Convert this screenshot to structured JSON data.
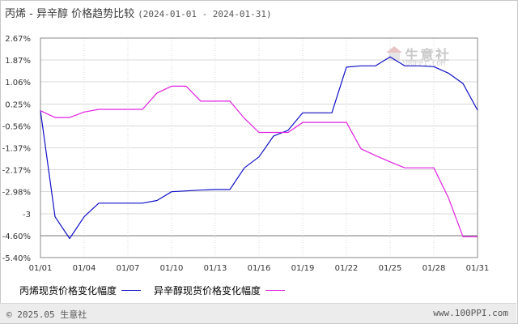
{
  "header": {
    "title": "丙烯 - 异辛醇 价格趋势比较",
    "date_range": "(2024-01-01 - 2024-01-31)"
  },
  "watermark": {
    "text": "生意社",
    "url": "100PPI.COM"
  },
  "footer": {
    "copyright": "© 2025.05 生意社",
    "site": "www.100PPI.com"
  },
  "colors": {
    "series1": "#1010c8",
    "series2": "#e020e0",
    "grid": "#d8d8d8",
    "axis": "#888888"
  },
  "chart_data": {
    "type": "line",
    "title": "丙烯 - 异辛醇 价格趋势比较",
    "xlabel": "",
    "ylabel": "",
    "y_tick_labels": [
      "2.67%",
      "1.87%",
      "1.06%",
      "0.25%",
      "-0.56%",
      "-1.37%",
      "-2.17%",
      "-2.98%",
      "-3",
      "-4.60%",
      "-5.40%"
    ],
    "ylim": [
      -5.4,
      2.67
    ],
    "x_tick_labels": [
      "01/01",
      "01/04",
      "01/07",
      "01/10",
      "01/13",
      "01/16",
      "01/19",
      "01/22",
      "01/25",
      "01/28",
      "01/31"
    ],
    "grid": true,
    "legend_position": "bottom-left",
    "x": [
      "01/01",
      "01/02",
      "01/03",
      "01/04",
      "01/05",
      "01/06",
      "01/07",
      "01/08",
      "01/09",
      "01/10",
      "01/11",
      "01/12",
      "01/13",
      "01/14",
      "01/15",
      "01/16",
      "01/17",
      "01/18",
      "01/19",
      "01/20",
      "01/21",
      "01/22",
      "01/23",
      "01/24",
      "01/25",
      "01/26",
      "01/27",
      "01/28",
      "01/29",
      "01/30",
      "01/31"
    ],
    "series": [
      {
        "name": "丙烯现货价格变化幅度",
        "values": [
          0.0,
          -3.9,
          -4.7,
          -3.9,
          -3.4,
          -3.4,
          -3.4,
          -3.4,
          -3.3,
          -2.98,
          -2.95,
          -2.92,
          -2.9,
          -2.9,
          -2.1,
          -1.7,
          -0.93,
          -0.72,
          -0.08,
          -0.08,
          -0.08,
          1.6,
          1.65,
          1.65,
          1.98,
          1.65,
          1.65,
          1.62,
          1.38,
          1.0,
          0.02
        ]
      },
      {
        "name": "异辛醇现货价格变化幅度",
        "values": [
          0.0,
          -0.25,
          -0.25,
          -0.05,
          0.05,
          0.05,
          0.05,
          0.05,
          0.65,
          0.9,
          0.9,
          0.35,
          0.35,
          0.35,
          -0.28,
          -0.8,
          -0.8,
          -0.8,
          -0.43,
          -0.43,
          -0.43,
          -0.43,
          -1.4,
          -1.65,
          -1.88,
          -2.1,
          -2.1,
          -2.1,
          -3.2,
          -4.63,
          -4.63
        ]
      }
    ]
  }
}
